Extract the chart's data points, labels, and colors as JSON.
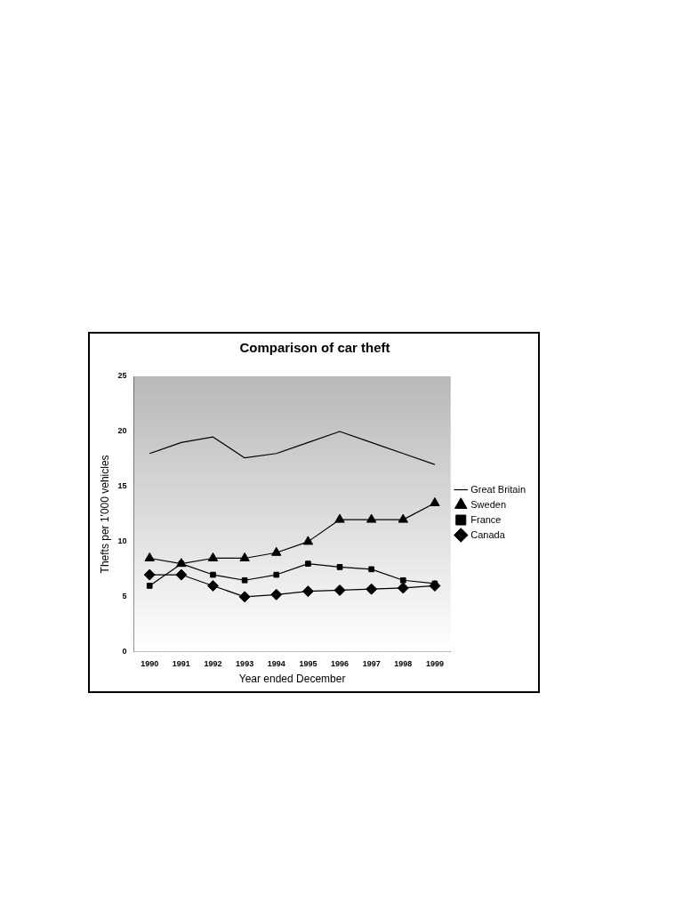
{
  "chart_data": {
    "type": "line",
    "title": "Comparison of car theft",
    "xlabel": "Year ended December",
    "ylabel": "Thefts per 1'000 vehicles",
    "categories": [
      "1990",
      "1991",
      "1992",
      "1993",
      "1994",
      "1995",
      "1996",
      "1997",
      "1998",
      "1999"
    ],
    "series": [
      {
        "name": "Great Britain",
        "color": "#000000",
        "marker": "none",
        "values": [
          18,
          19,
          19.5,
          17.6,
          18,
          19,
          20,
          19,
          18,
          17
        ]
      },
      {
        "name": "Sweden",
        "color": "#000000",
        "marker": "triangle",
        "values": [
          8.5,
          8,
          8.5,
          8.5,
          9,
          10,
          12,
          12,
          12,
          13.5
        ]
      },
      {
        "name": "France",
        "color": "#000000",
        "marker": "square",
        "values": [
          6,
          8,
          7,
          6.5,
          7,
          8,
          7.7,
          7.5,
          6.5,
          6.2
        ]
      },
      {
        "name": "Canada",
        "color": "#000000",
        "marker": "diamond",
        "values": [
          7,
          7,
          6,
          5,
          5.2,
          5.5,
          5.6,
          5.7,
          5.8,
          6
        ]
      }
    ],
    "ylim": [
      0,
      25
    ],
    "yticks": [
      0,
      5,
      10,
      15,
      20,
      25
    ],
    "grid": false,
    "legend": "right",
    "line_style": "solid"
  }
}
